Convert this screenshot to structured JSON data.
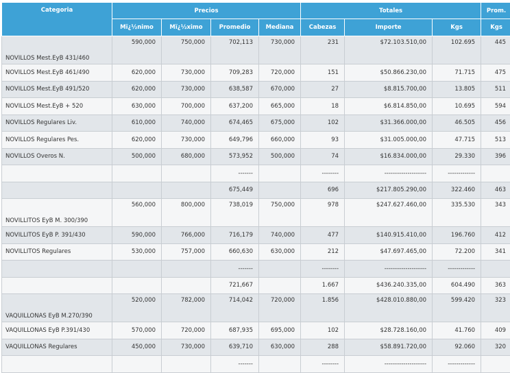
{
  "headers": {
    "categoria": "Categoria",
    "precios": "Precios",
    "totales": "Totales",
    "prom": "Prom.",
    "minimo": "Mï¿½nimo",
    "maximo": "Mï¿½ximo",
    "promedio": "Promedio",
    "mediana": "Mediana",
    "cabezas": "Cabezas",
    "importe": "Importe",
    "kgs": "Kgs",
    "prom_kgs": "Kgs"
  },
  "rows": [
    {
      "cat": "NOVILLOS Mest.EyB 431/460",
      "min": "590,000",
      "max": "750,000",
      "prom": "702,113",
      "med": "730,000",
      "cab": "231",
      "imp": "$72.103.510,00",
      "kgs": "102.695",
      "pk": "445",
      "multi": true
    },
    {
      "cat": "NOVILLOS Mest.EyB 461/490",
      "min": "620,000",
      "max": "730,000",
      "prom": "709,283",
      "med": "720,000",
      "cab": "151",
      "imp": "$50.866.230,00",
      "kgs": "71.715",
      "pk": "475"
    },
    {
      "cat": "NOVILLOS Mest.EyB 491/520",
      "min": "620,000",
      "max": "730,000",
      "prom": "638,587",
      "med": "670,000",
      "cab": "27",
      "imp": "$8.815.700,00",
      "kgs": "13.805",
      "pk": "511"
    },
    {
      "cat": "NOVILLOS Mest.EyB + 520",
      "min": "630,000",
      "max": "700,000",
      "prom": "637,200",
      "med": "665,000",
      "cab": "18",
      "imp": "$6.814.850,00",
      "kgs": "10.695",
      "pk": "594"
    },
    {
      "cat": "NOVILLOS Regulares Liv.",
      "min": "610,000",
      "max": "740,000",
      "prom": "674,465",
      "med": "675,000",
      "cab": "102",
      "imp": "$31.366.000,00",
      "kgs": "46.505",
      "pk": "456"
    },
    {
      "cat": "NOVILLOS Regulares Pes.",
      "min": "620,000",
      "max": "730,000",
      "prom": "649,796",
      "med": "660,000",
      "cab": "93",
      "imp": "$31.005.000,00",
      "kgs": "47.715",
      "pk": "513"
    },
    {
      "cat": "NOVILLOS Overos N.",
      "min": "500,000",
      "max": "680,000",
      "prom": "573,952",
      "med": "500,000",
      "cab": "74",
      "imp": "$16.834.000,00",
      "kgs": "29.330",
      "pk": "396"
    },
    {
      "cat": "",
      "min": "",
      "max": "",
      "prom": "-------",
      "med": "",
      "cab": "--------",
      "imp": "--------------------",
      "kgs": "-------------",
      "pk": "",
      "dash": true
    },
    {
      "cat": "",
      "min": "",
      "max": "",
      "prom": "675,449",
      "med": "",
      "cab": "696",
      "imp": "$217.805.290,00",
      "kgs": "322.460",
      "pk": "463"
    },
    {
      "cat": "NOVILLITOS EyB M. 300/390",
      "min": "560,000",
      "max": "800,000",
      "prom": "738,019",
      "med": "750,000",
      "cab": "978",
      "imp": "$247.627.460,00",
      "kgs": "335.530",
      "pk": "343",
      "multi": true
    },
    {
      "cat": "NOVILLITOS EyB P. 391/430",
      "min": "590,000",
      "max": "766,000",
      "prom": "716,179",
      "med": "740,000",
      "cab": "477",
      "imp": "$140.915.410,00",
      "kgs": "196.760",
      "pk": "412"
    },
    {
      "cat": "NOVILLITOS Regulares",
      "min": "530,000",
      "max": "757,000",
      "prom": "660,630",
      "med": "630,000",
      "cab": "212",
      "imp": "$47.697.465,00",
      "kgs": "72.200",
      "pk": "341"
    },
    {
      "cat": "",
      "min": "",
      "max": "",
      "prom": "-------",
      "med": "",
      "cab": "--------",
      "imp": "--------------------",
      "kgs": "-------------",
      "pk": "",
      "dash": true
    },
    {
      "cat": "",
      "min": "",
      "max": "",
      "prom": "721,667",
      "med": "",
      "cab": "1.667",
      "imp": "$436.240.335,00",
      "kgs": "604.490",
      "pk": "363"
    },
    {
      "cat": "VAQUILLONAS EyB M.270/390",
      "min": "520,000",
      "max": "782,000",
      "prom": "714,042",
      "med": "720,000",
      "cab": "1.856",
      "imp": "$428.010.880,00",
      "kgs": "599.420",
      "pk": "323",
      "multi": true
    },
    {
      "cat": "VAQUILLONAS EyB P.391/430",
      "min": "570,000",
      "max": "720,000",
      "prom": "687,935",
      "med": "695,000",
      "cab": "102",
      "imp": "$28.728.160,00",
      "kgs": "41.760",
      "pk": "409"
    },
    {
      "cat": "VAQUILLONAS Regulares",
      "min": "450,000",
      "max": "730,000",
      "prom": "639,710",
      "med": "630,000",
      "cab": "288",
      "imp": "$58.891.720,00",
      "kgs": "92.060",
      "pk": "320"
    },
    {
      "cat": "",
      "min": "",
      "max": "",
      "prom": "-------",
      "med": "",
      "cab": "--------",
      "imp": "--------------------",
      "kgs": "-------------",
      "pk": "",
      "dash": true
    }
  ]
}
